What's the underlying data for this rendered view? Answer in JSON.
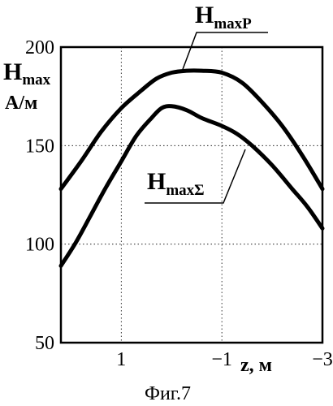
{
  "chart_data": {
    "type": "line",
    "caption": "Фиг.7",
    "y_axis": {
      "symbol": "H",
      "subscript": "max",
      "unit": "А/м",
      "ticks": [
        "200",
        "150",
        "100",
        "50"
      ],
      "range": [
        50,
        200
      ]
    },
    "x_axis": {
      "label": "z,  м",
      "ticks": [
        {
          "label": "1",
          "value": 1
        },
        {
          "label": "−1",
          "value": -1
        },
        {
          "label": "−3",
          "value": -3
        }
      ],
      "range": [
        2.2,
        -3
      ]
    },
    "grid": true,
    "series": [
      {
        "name": "H",
        "name_sub": "maxP",
        "x": [
          2.2,
          1.8,
          1.4,
          1.0,
          0.6,
          0.3,
          0.0,
          -0.3,
          -0.6,
          -1.0,
          -1.4,
          -1.8,
          -2.2,
          -2.6,
          -3.0
        ],
        "y": [
          128,
          142,
          157,
          169,
          178,
          184,
          187,
          188,
          188,
          187,
          182,
          172,
          160,
          145,
          128
        ]
      },
      {
        "name": "H",
        "name_sub": "maxΣ",
        "x": [
          2.2,
          1.9,
          1.6,
          1.3,
          1.0,
          0.7,
          0.4,
          0.2,
          0.0,
          -0.3,
          -0.6,
          -1.0,
          -1.3,
          -1.6,
          -2.0,
          -2.4,
          -2.7,
          -3.0
        ],
        "y": [
          89,
          101,
          115,
          129,
          142,
          155,
          164,
          169,
          170,
          168,
          164,
          160,
          156,
          150,
          140,
          128,
          119,
          108
        ]
      }
    ]
  }
}
